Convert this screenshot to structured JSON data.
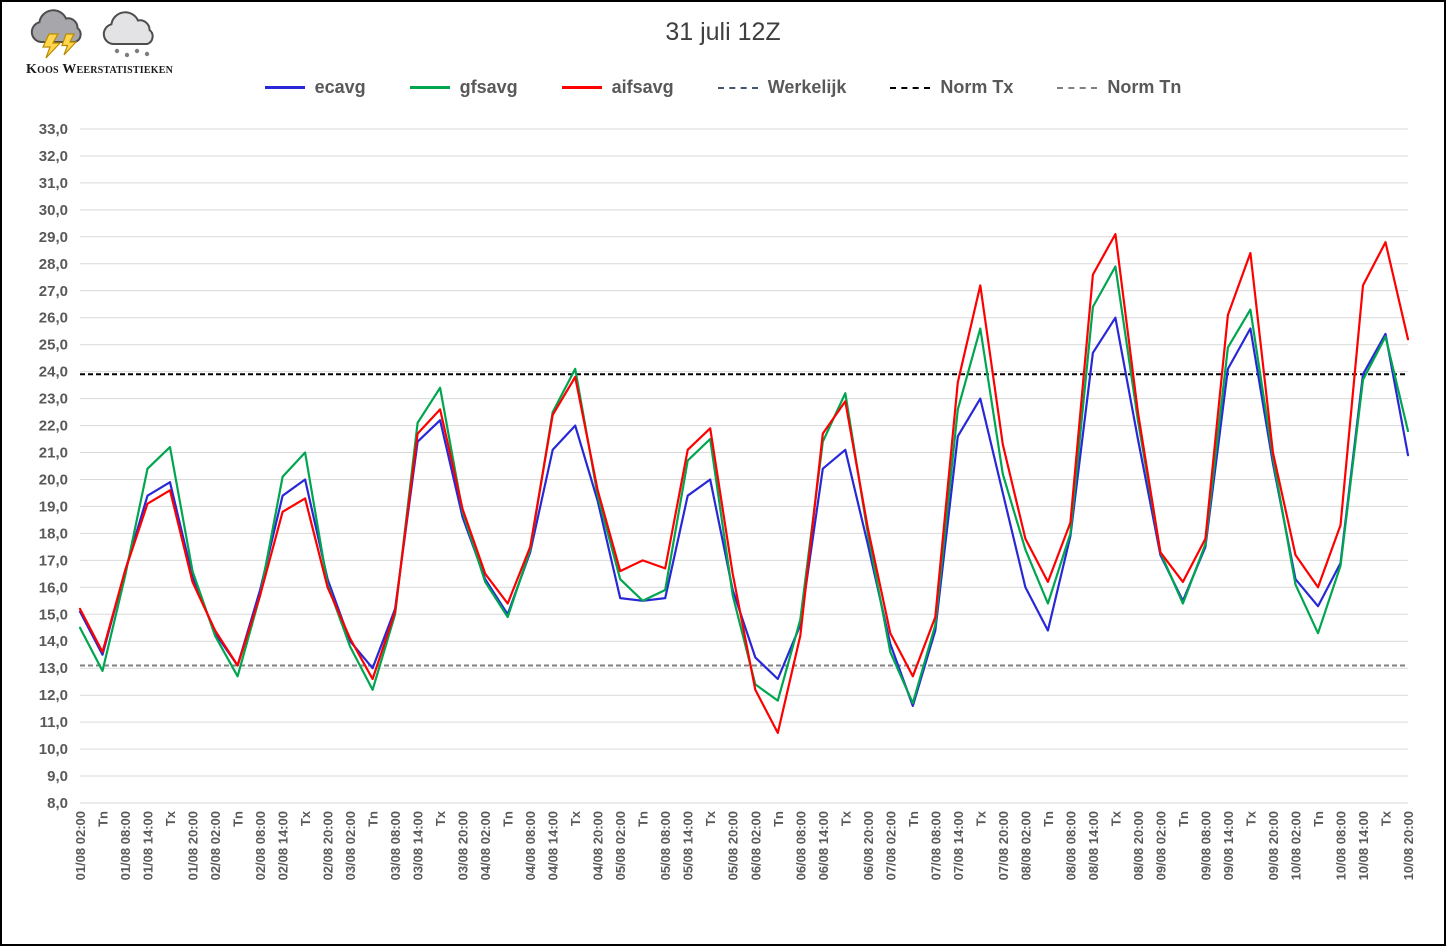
{
  "header": {
    "logo_text": "Koos Weerstatistieken",
    "title": "31 juli 12Z"
  },
  "legend": {
    "items": [
      {
        "key": "ecavg",
        "label": "ecavg",
        "color": "#2828d7",
        "style": "solid"
      },
      {
        "key": "gfsavg",
        "label": "gfsavg",
        "color": "#00a550",
        "style": "solid"
      },
      {
        "key": "aifsavg",
        "label": "aifsavg",
        "color": "#fe0000",
        "style": "solid"
      },
      {
        "key": "werkelijk",
        "label": "Werkelijk",
        "color": "#44546a",
        "style": "dashed"
      },
      {
        "key": "norm-tx",
        "label": "Norm Tx",
        "color": "#000000",
        "style": "dashed"
      },
      {
        "key": "norm-tn",
        "label": "Norm Tn",
        "color": "#808080",
        "style": "dashed"
      }
    ]
  },
  "chart_data": {
    "type": "line",
    "title": "31 juli 12Z",
    "xlabel": "",
    "ylabel": "",
    "ylim": [
      8,
      33
    ],
    "y_tick_step": 1,
    "grid": true,
    "grid_color": "#d9d9d9",
    "tick_color": "#595959",
    "legend_position": "top",
    "y_ticks": [
      "33,0",
      "32,0",
      "31,0",
      "30,0",
      "29,0",
      "28,0",
      "27,0",
      "26,0",
      "25,0",
      "24,0",
      "23,0",
      "22,0",
      "21,0",
      "20,0",
      "19,0",
      "18,0",
      "17,0",
      "16,0",
      "15,0",
      "14,0",
      "13,0",
      "12,0",
      "11,0",
      "10,0",
      "9,0",
      "8,0"
    ],
    "categories": [
      "01/08 02:00",
      "Tn",
      "01/08 08:00",
      "01/08 14:00",
      "Tx",
      "01/08 20:00",
      "02/08 02:00",
      "Tn",
      "02/08 08:00",
      "02/08 14:00",
      "Tx",
      "02/08 20:00",
      "03/08 02:00",
      "Tn",
      "03/08 08:00",
      "03/08 14:00",
      "Tx",
      "03/08 20:00",
      "04/08 02:00",
      "Tn",
      "04/08 08:00",
      "04/08 14:00",
      "Tx",
      "04/08 20:00",
      "05/08 02:00",
      "Tn",
      "05/08 08:00",
      "05/08 14:00",
      "Tx",
      "05/08 20:00",
      "06/08 02:00",
      "Tn",
      "06/08 08:00",
      "06/08 14:00",
      "Tx",
      "06/08 20:00",
      "07/08 02:00",
      "Tn",
      "07/08 08:00",
      "07/08 14:00",
      "Tx",
      "07/08 20:00",
      "08/08 02:00",
      "Tn",
      "08/08 08:00",
      "08/08 14:00",
      "Tx",
      "08/08 20:00",
      "09/08 02:00",
      "Tn",
      "09/08 08:00",
      "09/08 14:00",
      "Tx",
      "09/08 20:00",
      "10/08 02:00",
      "Tn",
      "10/08 08:00",
      "10/08 14:00",
      "Tx",
      "10/08 20:00"
    ],
    "series": [
      {
        "name": "ecavg",
        "color": "#2828d7",
        "style": "solid",
        "values": [
          15.1,
          13.5,
          16.6,
          19.4,
          19.9,
          16.4,
          14.3,
          13.1,
          15.9,
          19.4,
          20.0,
          16.3,
          14.0,
          13.0,
          15.2,
          21.4,
          22.2,
          18.6,
          16.3,
          15.0,
          17.3,
          21.1,
          22.0,
          19.2,
          15.6,
          15.5,
          15.6,
          19.4,
          20.0,
          15.9,
          13.4,
          12.6,
          14.6,
          20.4,
          21.1,
          17.6,
          13.9,
          11.6,
          14.4,
          21.6,
          23.0,
          19.5,
          16.0,
          14.4,
          17.9,
          24.7,
          26.0,
          21.5,
          17.2,
          15.5,
          17.5,
          24.1,
          25.6,
          20.6,
          16.3,
          15.3,
          16.9,
          23.9,
          25.4,
          20.9
        ]
      },
      {
        "name": "gfsavg",
        "color": "#00a550",
        "style": "solid",
        "values": [
          14.5,
          12.9,
          16.4,
          20.4,
          21.2,
          16.6,
          14.2,
          12.7,
          15.7,
          20.1,
          21.0,
          16.1,
          13.8,
          12.2,
          15.0,
          22.1,
          23.4,
          18.8,
          16.2,
          14.9,
          17.4,
          22.5,
          24.1,
          19.4,
          16.3,
          15.5,
          15.9,
          20.7,
          21.5,
          15.7,
          12.4,
          11.8,
          14.8,
          21.4,
          23.2,
          18.0,
          13.6,
          11.7,
          14.6,
          22.6,
          25.6,
          20.2,
          17.4,
          15.4,
          18.0,
          26.4,
          27.9,
          22.2,
          17.3,
          15.4,
          17.6,
          24.9,
          26.3,
          20.8,
          16.1,
          14.3,
          16.8,
          23.7,
          25.3,
          21.8
        ]
      },
      {
        "name": "aifsavg",
        "color": "#fe0000",
        "style": "solid",
        "values": [
          15.2,
          13.6,
          16.6,
          19.1,
          19.6,
          16.2,
          14.4,
          13.1,
          15.7,
          18.8,
          19.3,
          16.0,
          14.1,
          12.6,
          15.1,
          21.7,
          22.6,
          18.9,
          16.5,
          15.4,
          17.5,
          22.4,
          23.8,
          19.6,
          16.6,
          17.0,
          16.7,
          21.1,
          21.9,
          16.5,
          12.2,
          10.6,
          14.2,
          21.7,
          22.9,
          18.2,
          14.3,
          12.7,
          14.9,
          23.6,
          27.2,
          21.3,
          17.8,
          16.2,
          18.4,
          27.6,
          29.1,
          22.5,
          17.3,
          16.2,
          17.8,
          26.1,
          28.4,
          21.0,
          17.2,
          16.0,
          18.3,
          27.2,
          28.8,
          25.2
        ]
      },
      {
        "name": "Werkelijk",
        "color": "#44546a",
        "style": "dashed",
        "values": []
      }
    ],
    "norm_lines": [
      {
        "name": "Norm Tx",
        "value": 23.9,
        "color": "#000000"
      },
      {
        "name": "Norm Tn",
        "value": 13.1,
        "color": "#808080"
      }
    ]
  }
}
